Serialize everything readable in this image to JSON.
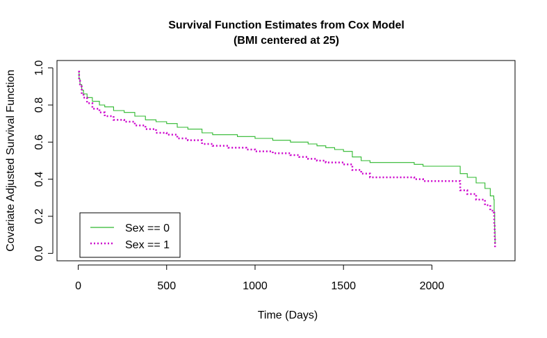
{
  "chart_data": {
    "type": "line",
    "title": "Survival Function Estimates from Cox Model",
    "subtitle": "(BMI centered at 25)",
    "xlabel": "Time (Days)",
    "ylabel": "Covariate Adjusted Survival Function",
    "xlim": [
      -120,
      2470
    ],
    "ylim": [
      -0.04,
      1.04
    ],
    "xticks": [
      0,
      500,
      1000,
      1500,
      2000
    ],
    "yticks": [
      0.0,
      0.2,
      0.4,
      0.6,
      0.8,
      1.0
    ],
    "xtick_labels": [
      "0",
      "500",
      "1000",
      "1500",
      "2000"
    ],
    "ytick_labels": [
      "0.0",
      "0.2",
      "0.4",
      "0.6",
      "0.8",
      "1.0"
    ],
    "legend_position": "bottom-left",
    "series": [
      {
        "name": "Sex == 0",
        "color": "#2db82d",
        "style": "solid",
        "x": [
          0,
          5,
          10,
          20,
          30,
          50,
          80,
          120,
          150,
          200,
          260,
          320,
          380,
          440,
          500,
          560,
          620,
          700,
          760,
          850,
          900,
          950,
          1000,
          1050,
          1100,
          1150,
          1200,
          1250,
          1300,
          1350,
          1400,
          1450,
          1500,
          1550,
          1600,
          1650,
          1700,
          1750,
          1800,
          1850,
          1900,
          1950,
          2000,
          2050,
          2100,
          2150,
          2160,
          2200,
          2250,
          2300,
          2330,
          2350,
          2352,
          2355,
          2357
        ],
        "y": [
          0.98,
          0.94,
          0.91,
          0.88,
          0.86,
          0.84,
          0.82,
          0.8,
          0.79,
          0.77,
          0.76,
          0.74,
          0.72,
          0.71,
          0.7,
          0.68,
          0.67,
          0.65,
          0.64,
          0.64,
          0.63,
          0.63,
          0.62,
          0.62,
          0.61,
          0.61,
          0.6,
          0.6,
          0.59,
          0.58,
          0.57,
          0.56,
          0.55,
          0.52,
          0.5,
          0.49,
          0.49,
          0.49,
          0.49,
          0.49,
          0.48,
          0.47,
          0.47,
          0.47,
          0.47,
          0.47,
          0.43,
          0.41,
          0.38,
          0.35,
          0.31,
          0.29,
          0.22,
          0.12,
          0.05
        ]
      },
      {
        "name": "Sex == 1",
        "color": "#cc00cc",
        "style": "dotted",
        "x": [
          0,
          5,
          10,
          20,
          30,
          50,
          80,
          120,
          150,
          200,
          260,
          320,
          380,
          440,
          500,
          560,
          620,
          700,
          760,
          850,
          900,
          950,
          1000,
          1050,
          1100,
          1150,
          1200,
          1250,
          1300,
          1350,
          1400,
          1450,
          1500,
          1550,
          1600,
          1650,
          1700,
          1750,
          1800,
          1850,
          1900,
          1950,
          2000,
          2050,
          2100,
          2150,
          2160,
          2200,
          2250,
          2300,
          2330,
          2350,
          2352,
          2355,
          2357
        ],
        "y": [
          0.98,
          0.93,
          0.9,
          0.86,
          0.84,
          0.81,
          0.78,
          0.76,
          0.74,
          0.72,
          0.71,
          0.69,
          0.67,
          0.65,
          0.64,
          0.62,
          0.61,
          0.59,
          0.58,
          0.57,
          0.57,
          0.56,
          0.55,
          0.55,
          0.54,
          0.54,
          0.53,
          0.52,
          0.51,
          0.5,
          0.49,
          0.49,
          0.48,
          0.45,
          0.43,
          0.41,
          0.41,
          0.41,
          0.41,
          0.41,
          0.4,
          0.39,
          0.39,
          0.39,
          0.39,
          0.39,
          0.34,
          0.32,
          0.29,
          0.26,
          0.23,
          0.22,
          0.16,
          0.08,
          0.03
        ]
      }
    ]
  }
}
